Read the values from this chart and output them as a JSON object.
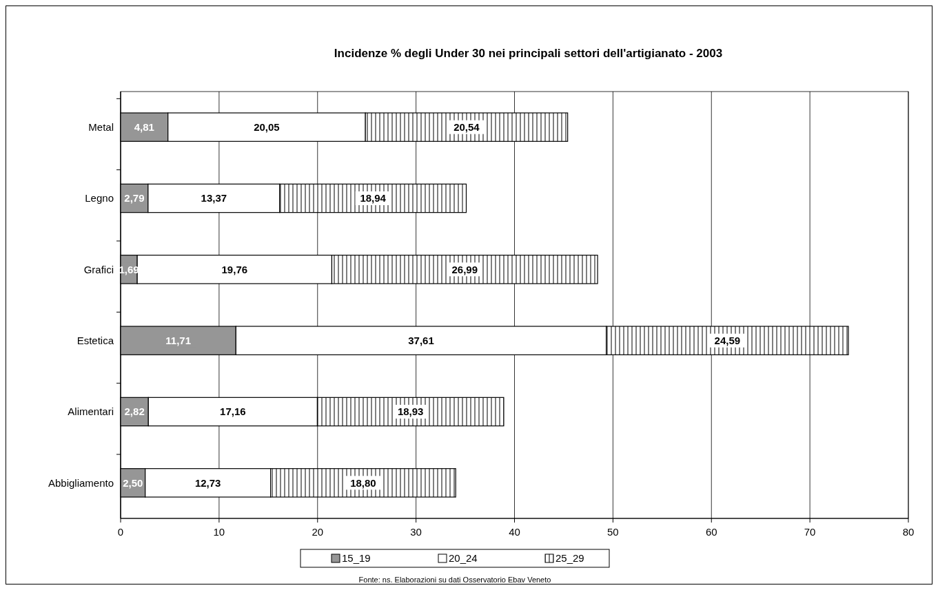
{
  "chart_data": {
    "type": "bar",
    "orientation": "horizontal",
    "stacked": true,
    "title": "Incidenze % degli Under 30 nei principali  settori dell'artigianato - 2003",
    "categories": [
      "Metal",
      "Legno",
      "Grafici",
      "Estetica",
      "Alimentari",
      "Abbigliamento"
    ],
    "series": [
      {
        "name": "15_19",
        "color": "#969696",
        "values": [
          4.81,
          2.79,
          1.69,
          11.71,
          2.82,
          2.5
        ],
        "value_labels": [
          "4,81",
          "2,79",
          "1,69",
          "11,71",
          "2,82",
          "2,50"
        ]
      },
      {
        "name": "20_24",
        "color": "#ffffff",
        "values": [
          20.05,
          13.37,
          19.76,
          37.61,
          17.16,
          12.73
        ],
        "value_labels": [
          "20,05",
          "13,37",
          "19,76",
          "37,61",
          "17,16",
          "12,73"
        ]
      },
      {
        "name": "25_29",
        "color": "#000000",
        "values": [
          20.54,
          18.94,
          26.99,
          24.59,
          18.93,
          18.8
        ],
        "value_labels": [
          "20,54",
          "18,94",
          "26,99",
          "24,59",
          "18,93",
          "18,80"
        ]
      }
    ],
    "xlim": [
      0,
      80
    ],
    "xticks": [
      0,
      10,
      20,
      30,
      40,
      50,
      60,
      70,
      80
    ],
    "grid": "x",
    "legend": "bottom",
    "annotations": [
      "Fonte: ns. Elaborazioni su dati Osservatorio Ebav Veneto"
    ]
  }
}
